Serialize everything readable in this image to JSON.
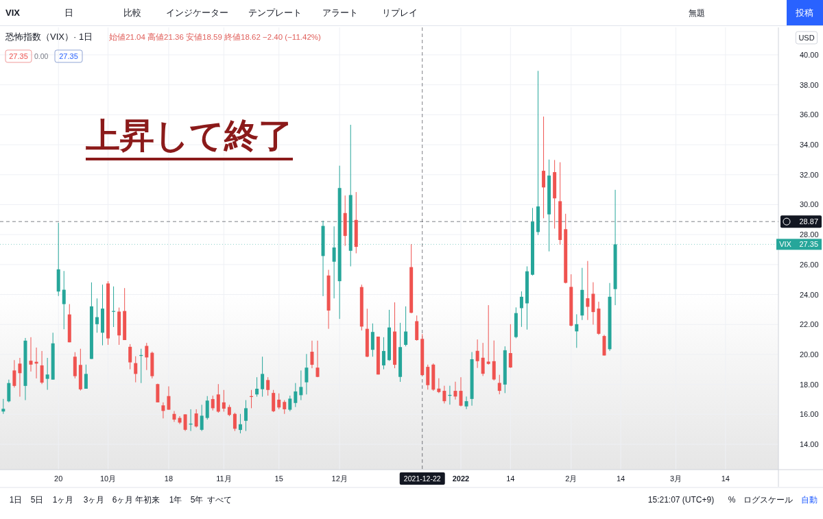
{
  "chart_data": {
    "type": "candlestick",
    "title": "恐怖指数（VIX）· 1日",
    "subtitle": "始値21.04 高値21.36 安値18.59 終値18.62 −2.40 (−11.42%)",
    "annotations": [
      "上昇して終了",
      "27.35",
      "0.00",
      "27.35",
      "VIX",
      "USD",
      "VIX",
      "日",
      "比較",
      "インジケーター",
      "テンプレート",
      "アラート",
      "リプレイ",
      "無題",
      "投稿",
      "1日",
      "5日",
      "1ヶ月",
      "3ヶ月",
      "6ヶ月",
      "年初来",
      "1年",
      "5年",
      "すべて",
      "15:21:07 (UTC+9)",
      "%",
      "ログスケール",
      "自動"
    ],
    "categories": [
      null,
      null,
      null,
      null,
      null,
      null,
      null,
      null,
      null,
      null,
      "20",
      null,
      null,
      null,
      null,
      null,
      null,
      null,
      null,
      "10月",
      null,
      null,
      null,
      null,
      null,
      null,
      null,
      null,
      null,
      null,
      "18",
      null,
      null,
      null,
      null,
      null,
      null,
      null,
      null,
      null,
      "11月",
      null,
      null,
      null,
      null,
      null,
      null,
      null,
      null,
      null,
      "15",
      null,
      null,
      null,
      null,
      null,
      null,
      null,
      null,
      null,
      null,
      "12月",
      null,
      null,
      null,
      null,
      null,
      null,
      null,
      null,
      null,
      null,
      null,
      null,
      null,
      null,
      "2021-12-22",
      null,
      null,
      null,
      null,
      null,
      null,
      "2022",
      null,
      null,
      null,
      null,
      null,
      null,
      null,
      null,
      "14",
      null,
      null,
      null,
      null,
      null,
      null,
      null,
      null,
      null,
      null,
      "2月",
      null,
      null,
      null,
      null,
      null,
      null,
      null,
      null,
      "14",
      null,
      null,
      null,
      null,
      null,
      null,
      null,
      null,
      null,
      "3月",
      null,
      null,
      null,
      null,
      null,
      null,
      null,
      null,
      "14",
      null,
      null,
      null,
      null,
      null,
      null,
      null,
      null,
      null
    ],
    "ohlc": [
      [
        16.19,
        17.03,
        16.03,
        16.37
      ],
      [
        16.87,
        18.32,
        16.8,
        18.09
      ],
      [
        18.93,
        19.62,
        17.79,
        17.9
      ],
      [
        19.39,
        19.77,
        17.18,
        18.75
      ],
      [
        17.9,
        21.1,
        16.95,
        20.92
      ],
      [
        19.58,
        21.15,
        18.86,
        19.32
      ],
      [
        19.51,
        20.46,
        18.4,
        19.39
      ],
      [
        19.27,
        20.23,
        18.02,
        18.12
      ],
      [
        18.37,
        19.77,
        17.64,
        18.66
      ],
      [
        18.32,
        21.45,
        18.32,
        20.74
      ],
      [
        24.2,
        28.79,
        23.9,
        25.68
      ],
      [
        23.36,
        25.57,
        21.68,
        24.32
      ],
      [
        22.67,
        23.36,
        20.81,
        20.81
      ],
      [
        19.85,
        20.15,
        18.4,
        18.55
      ],
      [
        19.3,
        20.38,
        17.59,
        17.67
      ],
      [
        17.71,
        19.32,
        17.71,
        18.7
      ],
      [
        19.7,
        24.81,
        19.7,
        23.21
      ],
      [
        22.02,
        23.74,
        21.45,
        22.49
      ],
      [
        21.45,
        24.66,
        20.61,
        23.06
      ],
      [
        24.74,
        24.89,
        20.64,
        21.07
      ],
      [
        22.86,
        24.54,
        21.83,
        22.9
      ],
      [
        22.86,
        23.13,
        20.64,
        21.27
      ],
      [
        22.9,
        24.43,
        20.96,
        20.96
      ],
      [
        20.51,
        20.69,
        19.01,
        19.47
      ],
      [
        19.42,
        19.88,
        18.14,
        18.7
      ],
      [
        19.9,
        20.38,
        18.09,
        19.96
      ],
      [
        20.57,
        20.77,
        18.96,
        19.8
      ],
      [
        20.11,
        20.19,
        18.4,
        18.55
      ],
      [
        18.02,
        18.05,
        16.8,
        16.8
      ],
      [
        16.6,
        16.8,
        15.73,
        16.23
      ],
      [
        17.22,
        17.87,
        16.31,
        16.31
      ],
      [
        16.03,
        16.22,
        15.5,
        15.65
      ],
      [
        15.76,
        15.88,
        15.35,
        15.45
      ],
      [
        16.0,
        16.0,
        14.89,
        14.97
      ],
      [
        15.32,
        16.34,
        14.89,
        15.38
      ],
      [
        16.06,
        16.34,
        15.12,
        15.19
      ],
      [
        14.97,
        16.64,
        14.89,
        15.91
      ],
      [
        15.76,
        17.22,
        15.65,
        16.92
      ],
      [
        17.02,
        17.25,
        16.26,
        16.41
      ],
      [
        17.33,
        18.02,
        16.11,
        16.18
      ],
      [
        16.8,
        17.63,
        16.18,
        16.38
      ],
      [
        16.49,
        16.64,
        15.88,
        15.96
      ],
      [
        16.03,
        16.11,
        14.89,
        15.04
      ],
      [
        14.96,
        16.03,
        14.73,
        15.34
      ],
      [
        15.57,
        16.95,
        14.89,
        16.41
      ],
      [
        17.22,
        17.63,
        16.41,
        17.16
      ],
      [
        17.33,
        18.48,
        17.18,
        17.71
      ],
      [
        17.68,
        19.85,
        17.18,
        18.7
      ],
      [
        18.29,
        18.48,
        17.25,
        17.63
      ],
      [
        17.43,
        17.63,
        16.15,
        16.21
      ],
      [
        16.98,
        17.4,
        16.34,
        16.46
      ],
      [
        16.83,
        16.95,
        16.03,
        16.34
      ],
      [
        16.31,
        17.25,
        16.21,
        17.05
      ],
      [
        16.76,
        18.09,
        16.49,
        17.53
      ],
      [
        17.28,
        18.93,
        16.95,
        17.83
      ],
      [
        18.14,
        20.03,
        17.33,
        19.12
      ],
      [
        20.18,
        20.92,
        19.08,
        19.31
      ],
      [
        19.12,
        20.92,
        18.48,
        18.5
      ],
      [
        26.57,
        28.93,
        23.89,
        28.58
      ],
      [
        25.27,
        25.65,
        21.71,
        22.93
      ],
      [
        26.19,
        28.55,
        23.74,
        27.14
      ],
      [
        24.89,
        32.6,
        22.37,
        31.11
      ],
      [
        29.44,
        30.61,
        27.25,
        27.91
      ],
      [
        26.92,
        35.33,
        25.88,
        30.64
      ],
      [
        28.98,
        30.84,
        26.75,
        27.18
      ],
      [
        24.5,
        24.66,
        21.6,
        21.86
      ],
      [
        21.71,
        23.05,
        19.82,
        19.85
      ],
      [
        20.31,
        22.07,
        19.85,
        21.5
      ],
      [
        21.19,
        21.19,
        18.66,
        18.66
      ],
      [
        19.27,
        21.15,
        19.01,
        20.23
      ],
      [
        19.62,
        22.98,
        19.57,
        21.8
      ],
      [
        21.53,
        23.48,
        19.08,
        19.31
      ],
      [
        18.5,
        22.11,
        18.17,
        20.49
      ],
      [
        20.64,
        23.21,
        20.54,
        21.53
      ],
      [
        25.83,
        27.36,
        22.75,
        22.78
      ],
      [
        22.22,
        22.6,
        20.92,
        20.96
      ],
      [
        21.04,
        21.36,
        18.59,
        18.62
      ],
      [
        19.17,
        19.32,
        17.65,
        17.95
      ],
      [
        19.32,
        19.4,
        17.57,
        17.65
      ],
      [
        17.72,
        18.41,
        17.42,
        17.49
      ],
      [
        17.57,
        17.91,
        16.73,
        16.88
      ],
      [
        17.24,
        17.91,
        16.65,
        17.3
      ],
      [
        17.57,
        18.18,
        16.99,
        17.19
      ],
      [
        17.57,
        18.48,
        16.53,
        16.58
      ],
      [
        16.53,
        17.19,
        16.35,
        16.88
      ],
      [
        17.03,
        20.16,
        16.58,
        19.68
      ],
      [
        20.24,
        21.0,
        19.1,
        19.55
      ],
      [
        19.78,
        20.77,
        18.56,
        18.71
      ],
      [
        19.52,
        23.29,
        19.32,
        19.37
      ],
      [
        19.55,
        20.93,
        18.26,
        18.33
      ],
      [
        18.1,
        18.64,
        17.34,
        17.57
      ],
      [
        17.99,
        20.54,
        17.42,
        20.28
      ],
      [
        20.09,
        22.02,
        19.1,
        19.13
      ],
      [
        21.16,
        23.14,
        21.08,
        22.76
      ],
      [
        23.09,
        24.21,
        21.84,
        23.85
      ],
      [
        23.41,
        25.88,
        21.66,
        25.55
      ],
      [
        25.32,
        29.78,
        25.27,
        28.86
      ],
      [
        28.17,
        38.93,
        27.97,
        29.88
      ],
      [
        32.26,
        35.88,
        29.09,
        31.15
      ],
      [
        29.35,
        33.01,
        26.88,
        31.94
      ],
      [
        32.17,
        32.98,
        28.4,
        30.42
      ],
      [
        30.23,
        32.83,
        27.33,
        27.64
      ],
      [
        28.36,
        29.39,
        24.74,
        24.78
      ],
      [
        24.51,
        25.35,
        21.87,
        21.92
      ],
      [
        21.54,
        22.68,
        20.44,
        22.02
      ],
      [
        22.6,
        25.78,
        22.3,
        24.31
      ],
      [
        23.75,
        26.24,
        22.3,
        23.18
      ],
      [
        24.05,
        24.82,
        21.99,
        22.83
      ],
      [
        23.06,
        23.52,
        21.31,
        21.38
      ],
      [
        21.23,
        21.31,
        19.93,
        19.93
      ],
      [
        20.35,
        24.77,
        20.24,
        23.85
      ],
      [
        24.36,
        30.99,
        23.29,
        27.35
      ],
      null,
      null,
      null,
      null,
      null,
      null,
      null,
      null,
      null,
      null,
      null,
      null,
      null,
      null,
      null,
      null,
      null,
      null,
      null,
      null,
      null,
      null,
      null,
      null,
      null,
      null,
      null,
      null,
      null
    ],
    "colors": [
      "#26a69a",
      "#26a69a",
      "#ef5350",
      "#ef5350",
      "#26a69a",
      "#ef5350",
      "#ef5350",
      "#ef5350",
      "#26a69a",
      "#26a69a",
      "#26a69a",
      "#26a69a",
      "#ef5350",
      "#ef5350",
      "#ef5350",
      "#26a69a",
      "#26a69a",
      "#26a69a",
      "#26a69a",
      "#ef5350",
      "#26a69a",
      "#ef5350",
      "#ef5350",
      "#ef5350",
      "#ef5350",
      "#26a69a",
      "#ef5350",
      "#ef5350",
      "#ef5350",
      "#ef5350",
      "#ef5350",
      "#ef5350",
      "#ef5350",
      "#ef5350",
      "#26a69a",
      "#ef5350",
      "#26a69a",
      "#26a69a",
      "#ef5350",
      "#ef5350",
      "#ef5350",
      "#ef5350",
      "#ef5350",
      "#26a69a",
      "#26a69a",
      "#ef5350",
      "#26a69a",
      "#26a69a",
      "#ef5350",
      "#ef5350",
      "#ef5350",
      "#ef5350",
      "#26a69a",
      "#26a69a",
      "#26a69a",
      "#26a69a",
      "#ef5350",
      "#ef5350",
      "#26a69a",
      "#ef5350",
      "#26a69a",
      "#26a69a",
      "#ef5350",
      "#26a69a",
      "#ef5350",
      "#ef5350",
      "#ef5350",
      "#26a69a",
      "#ef5350",
      "#26a69a",
      "#26a69a",
      "#ef5350",
      "#26a69a",
      "#26a69a",
      "#ef5350",
      "#ef5350",
      "#ef5350",
      "#ef5350",
      "#ef5350",
      "#ef5350",
      "#ef5350",
      "#26a69a",
      "#ef5350",
      "#ef5350",
      "#26a69a",
      "#26a69a",
      "#ef5350",
      "#ef5350",
      "#ef5350",
      "#ef5350",
      "#ef5350",
      "#26a69a",
      "#ef5350",
      "#26a69a",
      "#26a69a",
      "#26a69a",
      "#26a69a",
      "#26a69a",
      "#ef5350",
      "#26a69a",
      "#ef5350",
      "#ef5350",
      "#ef5350",
      "#ef5350",
      "#26a69a",
      "#26a69a",
      "#ef5350",
      "#ef5350",
      "#ef5350",
      "#ef5350",
      "#26a69a",
      "#26a69a",
      null,
      null,
      null,
      null,
      null,
      null,
      null,
      null,
      null,
      null,
      null,
      null,
      null,
      null,
      null,
      null,
      null,
      null,
      null,
      null,
      null,
      null,
      null,
      null,
      null,
      null,
      null,
      null,
      null
    ],
    "ylim": [
      12.31,
      41.83
    ],
    "yticks": [
      {
        "value": 14,
        "label": "14.00"
      },
      {
        "value": 16,
        "label": "16.00"
      },
      {
        "value": 18,
        "label": "18.00"
      },
      {
        "value": 20,
        "label": "20.00"
      },
      {
        "value": 22,
        "label": "22.00"
      },
      {
        "value": 24,
        "label": "24.00"
      },
      {
        "value": 26,
        "label": "26.00"
      },
      {
        "value": 28,
        "label": "28.00"
      },
      {
        "value": 30,
        "label": "30.00"
      },
      {
        "value": 32,
        "label": "32.00"
      },
      {
        "value": 34,
        "label": "34.00"
      },
      {
        "value": 36,
        "label": "36.00"
      },
      {
        "value": 38,
        "label": "38.00"
      },
      {
        "value": 40,
        "label": "40.00"
      }
    ],
    "ref_lines": [
      {
        "axis": "y",
        "value": 28.87,
        "label": "28.87",
        "color": "#131722",
        "line_style": "dashed"
      },
      {
        "axis": "y",
        "value": 27.35,
        "label": "27.35",
        "color": "#26a69a",
        "line_style": "dotted"
      },
      {
        "axis": "x",
        "value": "2021-12-22",
        "color": "#131722",
        "line_style": "dashed"
      }
    ],
    "grid": true
  }
}
